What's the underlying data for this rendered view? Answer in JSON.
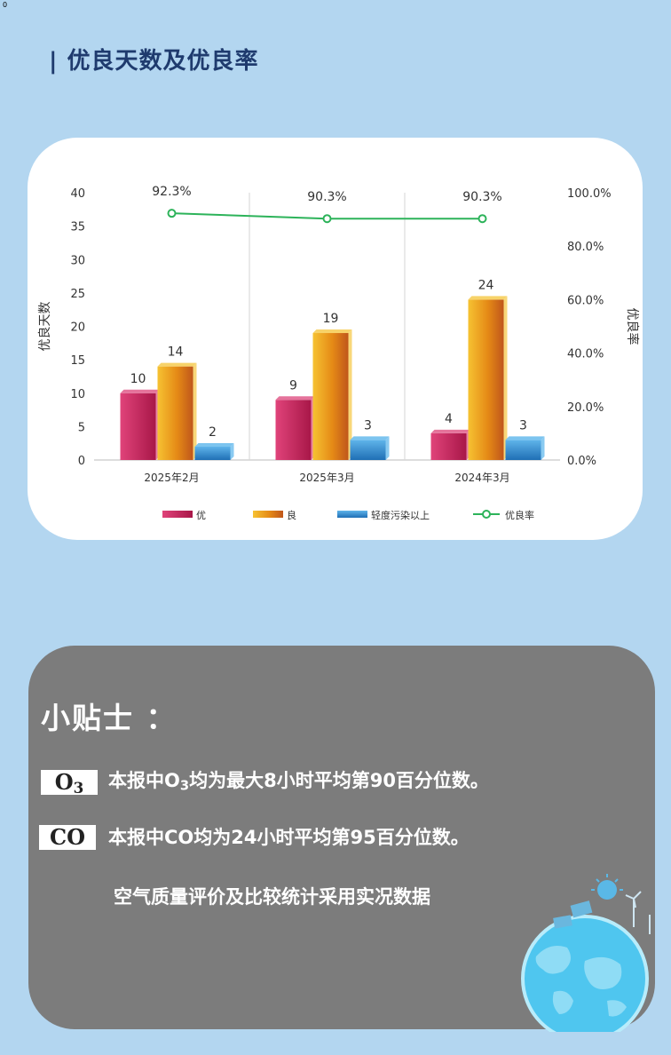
{
  "corner_mark": "0",
  "header": {
    "title": "| 优良天数及优良率"
  },
  "chart_data": {
    "type": "bar",
    "categories": [
      "2025年2月",
      "2025年3月",
      "2024年3月"
    ],
    "series": [
      {
        "name": "优",
        "values": [
          10,
          9,
          4
        ],
        "color": "#c8235a"
      },
      {
        "name": "良",
        "values": [
          14,
          19,
          24
        ],
        "color": "#e68a14"
      },
      {
        "name": "轻度污染以上",
        "values": [
          2,
          3,
          3
        ],
        "color": "#2b8ad0"
      }
    ],
    "line_series": {
      "name": "优良率",
      "values": [
        92.3,
        90.3,
        90.3
      ],
      "labels": [
        "92.3%",
        "90.3%",
        "90.3%"
      ],
      "color": "#2db35a"
    },
    "ylabel": "优良天数",
    "y2label": "优良率",
    "ylim": [
      0,
      40
    ],
    "y_ticks": [
      "0",
      "5",
      "10",
      "15",
      "20",
      "25",
      "30",
      "35",
      "40"
    ],
    "y2lim": [
      0,
      100
    ],
    "y2_ticks": [
      "0.0%",
      "20.0%",
      "40.0%",
      "60.0%",
      "80.0%",
      "100.0%"
    ],
    "legend_position": "bottom"
  },
  "tips": {
    "title": "小贴士 ：",
    "o3_badge": "O3",
    "co_badge": "CO",
    "line1_prefix": "本报中O",
    "line1_sub": "3",
    "line1_suffix": "均为最大8小时平均第90百分位数。",
    "line2": "本报中CO均为24小时平均第95百分位数。",
    "line3": "空气质量评价及比较统计采用实况数据"
  }
}
